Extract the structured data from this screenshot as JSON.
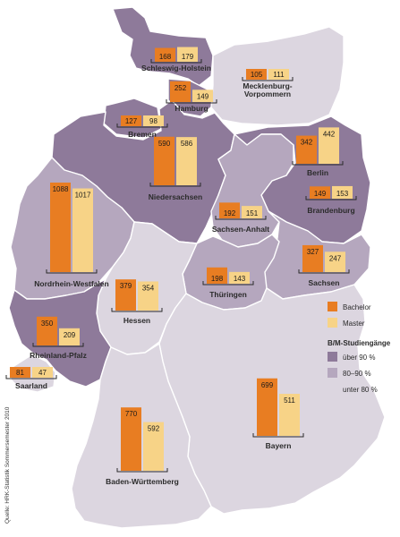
{
  "map": {
    "colors": {
      "high": "#8e7a9a",
      "mid": "#b5a7be",
      "low": "#dcd6e0",
      "bachelor": "#e87d22",
      "master": "#f7d387"
    },
    "states": [
      {
        "name": "Schleswig-Holstein",
        "shade": "high",
        "bachelor": 168,
        "master": 179
      },
      {
        "name": "Hamburg",
        "shade": "high",
        "bachelor": 252,
        "master": 149
      },
      {
        "name": "Mecklenburg-Vorpommern",
        "shade": "low",
        "bachelor": 105,
        "master": 111
      },
      {
        "name": "Bremen",
        "shade": "high",
        "bachelor": 127,
        "master": 98
      },
      {
        "name": "Niedersachsen",
        "shade": "high",
        "bachelor": 590,
        "master": 586
      },
      {
        "name": "Berlin",
        "shade": "high",
        "bachelor": 342,
        "master": 442
      },
      {
        "name": "Brandenburg",
        "shade": "high",
        "bachelor": 149,
        "master": 153
      },
      {
        "name": "Sachsen-Anhalt",
        "shade": "mid",
        "bachelor": 192,
        "master": 151
      },
      {
        "name": "Nordrhein-Westfalen",
        "shade": "mid",
        "bachelor": 1088,
        "master": 1017
      },
      {
        "name": "Sachsen",
        "shade": "mid",
        "bachelor": 327,
        "master": 247
      },
      {
        "name": "Thüringen",
        "shade": "mid",
        "bachelor": 198,
        "master": 143
      },
      {
        "name": "Hessen",
        "shade": "low",
        "bachelor": 379,
        "master": 354
      },
      {
        "name": "Rheinland-Pfalz",
        "shade": "high",
        "bachelor": 350,
        "master": 209
      },
      {
        "name": "Saarland",
        "shade": "low",
        "bachelor": 81,
        "master": 47
      },
      {
        "name": "Bayern",
        "shade": "low",
        "bachelor": 699,
        "master": 511
      },
      {
        "name": "Baden-Württemberg",
        "shade": "low",
        "bachelor": 770,
        "master": 592
      }
    ]
  },
  "legend": {
    "bachelor": "Bachelor",
    "master": "Master",
    "heading": "B/M-Studiengänge",
    "over90": "über 90 %",
    "range80_90": "80–90 %",
    "under80": "unter 80 %"
  },
  "source": "Quelle: HRK-Statistik Sommersemester 2010"
}
